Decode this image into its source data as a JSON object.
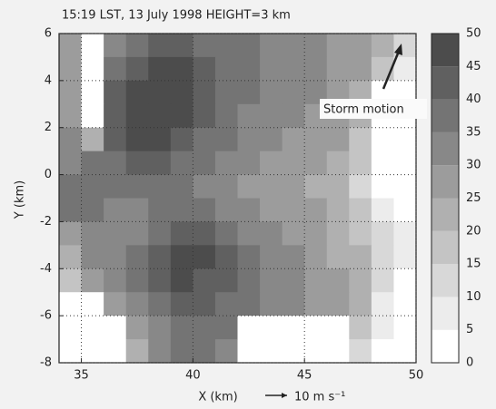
{
  "chart_data": {
    "type": "contour",
    "title": "15:19 LST, 13 July 1998 HEIGHT=3 km",
    "x_label": "X (km)",
    "y_label": "Y (km)",
    "vector_scale_label": "10 m s⁻¹",
    "annotation": "Storm motion",
    "xlim": [
      34,
      50
    ],
    "xticks": [
      35,
      40,
      45,
      50
    ],
    "ylim": [
      -8,
      6
    ],
    "yticks": [
      -8,
      -6,
      -4,
      -2,
      0,
      2,
      4,
      6
    ],
    "grid": true,
    "x": [
      34.5,
      35.5,
      36.5,
      37.5,
      38.5,
      39.5,
      40.5,
      41.5,
      42.5,
      43.5,
      44.5,
      45.5,
      46.5,
      47.5,
      48.5,
      49.5
    ],
    "y": [
      5.5,
      4.5,
      3.5,
      2.5,
      1.5,
      0.5,
      -0.5,
      -1.5,
      -2.5,
      -3.5,
      -4.5,
      -5.5,
      -6.5,
      -7.5
    ],
    "z": [
      [
        25,
        0,
        30,
        35,
        40,
        40,
        35,
        35,
        35,
        30,
        30,
        30,
        25,
        25,
        20,
        10
      ],
      [
        25,
        0,
        35,
        40,
        45,
        45,
        40,
        35,
        35,
        30,
        30,
        30,
        25,
        25,
        15,
        5
      ],
      [
        25,
        0,
        40,
        45,
        45,
        45,
        40,
        35,
        35,
        30,
        30,
        30,
        25,
        20,
        0,
        0
      ],
      [
        25,
        0,
        40,
        45,
        45,
        45,
        40,
        35,
        30,
        30,
        30,
        25,
        25,
        20,
        0,
        0
      ],
      [
        30,
        20,
        40,
        45,
        45,
        40,
        35,
        35,
        30,
        30,
        25,
        25,
        25,
        15,
        0,
        0
      ],
      [
        30,
        35,
        35,
        40,
        40,
        35,
        35,
        30,
        30,
        25,
        25,
        25,
        20,
        15,
        0,
        0
      ],
      [
        35,
        35,
        35,
        35,
        35,
        35,
        30,
        30,
        25,
        25,
        25,
        20,
        20,
        10,
        0,
        0
      ],
      [
        35,
        35,
        30,
        30,
        35,
        35,
        35,
        30,
        30,
        25,
        25,
        25,
        20,
        15,
        5,
        0
      ],
      [
        25,
        30,
        30,
        30,
        35,
        40,
        40,
        35,
        30,
        30,
        25,
        25,
        20,
        15,
        10,
        5
      ],
      [
        20,
        30,
        30,
        35,
        40,
        45,
        45,
        40,
        35,
        30,
        30,
        25,
        20,
        20,
        10,
        5
      ],
      [
        15,
        25,
        30,
        35,
        40,
        45,
        40,
        40,
        35,
        30,
        30,
        25,
        25,
        20,
        10,
        0
      ],
      [
        0,
        0,
        25,
        30,
        35,
        40,
        40,
        35,
        35,
        30,
        30,
        25,
        25,
        20,
        5,
        0
      ],
      [
        0,
        0,
        0,
        25,
        30,
        35,
        35,
        35,
        0,
        0,
        0,
        0,
        0,
        15,
        5,
        0
      ],
      [
        0,
        0,
        0,
        20,
        30,
        35,
        35,
        30,
        0,
        0,
        0,
        0,
        0,
        10,
        0,
        0
      ]
    ],
    "colorbar": {
      "levels": [
        0,
        5,
        10,
        15,
        20,
        25,
        30,
        35,
        40,
        45,
        50
      ],
      "colors": [
        "#ffffff",
        "#ececec",
        "#d8d8d8",
        "#c4c4c4",
        "#b0b0b0",
        "#9c9c9c",
        "#888888",
        "#747474",
        "#606060",
        "#4c4c4c"
      ]
    }
  }
}
